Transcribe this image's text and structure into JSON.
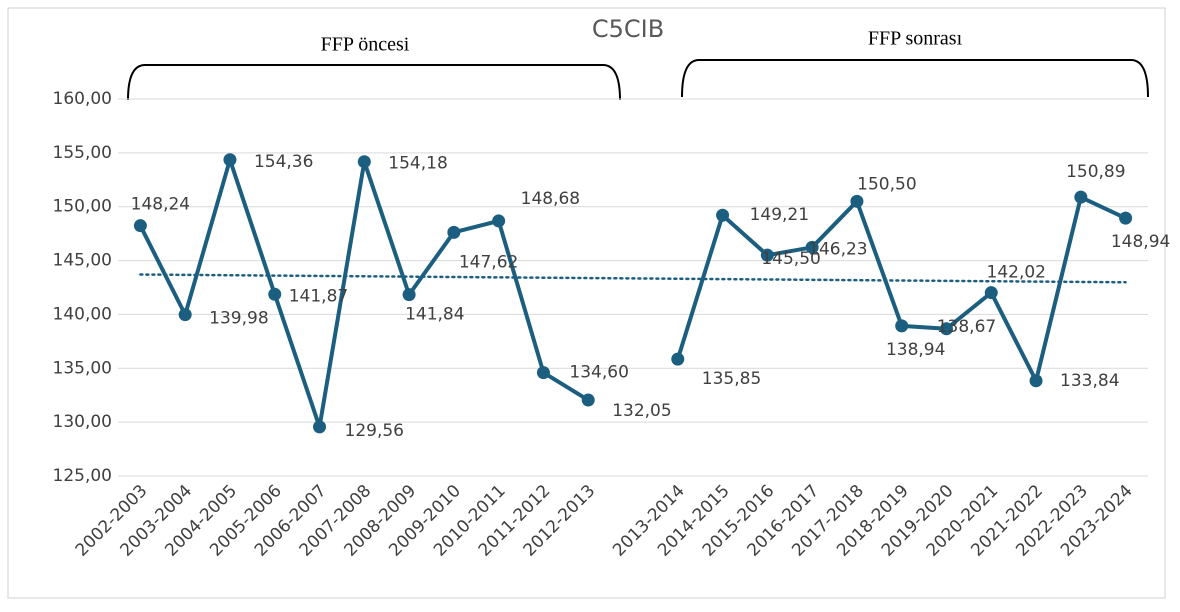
{
  "chart_data": {
    "type": "line",
    "title": "C5CIB",
    "annotations": [
      "FFP öncesi",
      "FFP sonrası"
    ],
    "categories": [
      "2002-2003",
      "2003-2004",
      "2004-2005",
      "2005-2006",
      "2006-2007",
      "2007-2008",
      "2008-2009",
      "2009-2010",
      "2010-2011",
      "2011-2012",
      "2012-2013",
      null,
      "2013-2014",
      "2014-2015",
      "2015-2016",
      "2016-2017",
      "2017-2018",
      "2018-2019",
      "2019-2020",
      "2020-2021",
      "2021-2022",
      "2022-2023",
      "2023-2024"
    ],
    "values": [
      148.24,
      139.98,
      154.36,
      141.87,
      129.56,
      154.18,
      141.84,
      147.62,
      148.68,
      134.6,
      132.05,
      null,
      135.85,
      149.21,
      145.5,
      146.23,
      150.5,
      138.94,
      138.67,
      142.02,
      133.84,
      150.89,
      148.94
    ],
    "value_labels": [
      "148,24",
      "139,98",
      "154,36",
      "141,87",
      "129,56",
      "154,18",
      "141,84",
      "147,62",
      "148,68",
      "134,60",
      "132,05",
      null,
      "135,85",
      "149,21",
      "145,50",
      "146,23",
      "150,50",
      "138,94",
      "138,67",
      "142,02",
      "133,84",
      "150,89",
      "148,94"
    ],
    "color": "#1b5e80",
    "trendline": true,
    "ylim": [
      125,
      160
    ],
    "yticks": [
      {
        "value": 125,
        "label": "125,00"
      },
      {
        "value": 130,
        "label": "130,00"
      },
      {
        "value": 135,
        "label": "135,00"
      },
      {
        "value": 140,
        "label": "140,00"
      },
      {
        "value": 145,
        "label": "145,00"
      },
      {
        "value": 150,
        "label": "150,00"
      },
      {
        "value": 155,
        "label": "155,00"
      },
      {
        "value": 160,
        "label": "160,00"
      }
    ],
    "grid": true
  }
}
